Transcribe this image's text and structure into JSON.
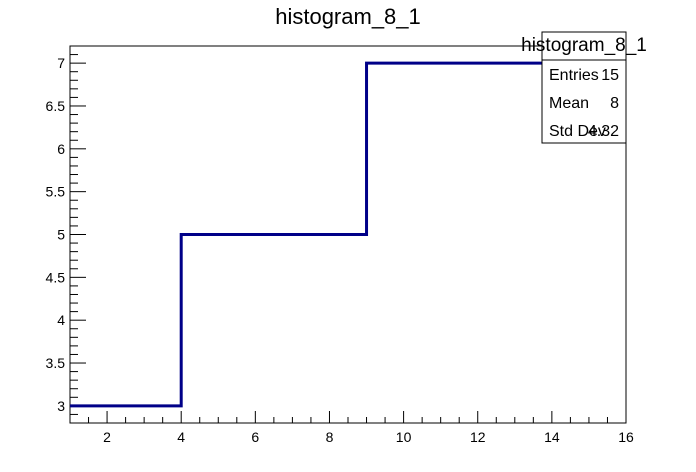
{
  "chart_data": {
    "type": "histogram",
    "title": "histogram_8_1",
    "xlabel": "",
    "ylabel": "",
    "bins": [
      {
        "x_low": 1,
        "x_high": 4,
        "value": 3
      },
      {
        "x_low": 4,
        "x_high": 9,
        "value": 5
      },
      {
        "x_low": 9,
        "x_high": 16,
        "value": 7
      }
    ],
    "xlim": [
      1,
      16
    ],
    "ylim": [
      2.8,
      7.2
    ],
    "x_ticks": [
      "2",
      "4",
      "6",
      "8",
      "10",
      "12",
      "14",
      "16"
    ],
    "y_ticks": [
      "3",
      "3.5",
      "4",
      "4.5",
      "5",
      "5.5",
      "6",
      "6.5",
      "7"
    ],
    "line_color": "#000088",
    "grid": false,
    "stats_box": {
      "name": "histogram_8_1",
      "rows": [
        {
          "label": "Entries",
          "value": "15"
        },
        {
          "label": "Mean",
          "value": "8"
        },
        {
          "label": "Std Dev",
          "value": "4.32"
        }
      ],
      "placement": "top-right"
    }
  }
}
